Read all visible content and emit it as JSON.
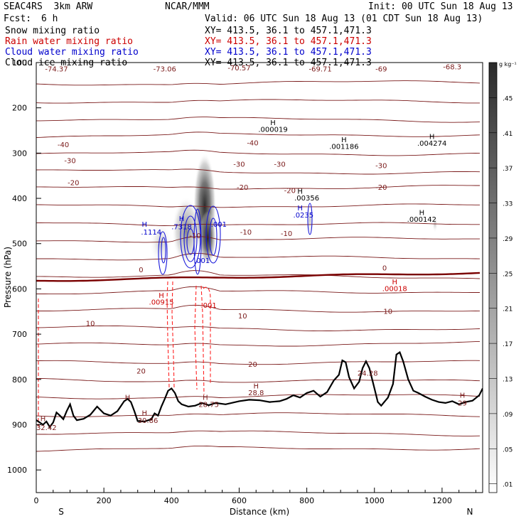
{
  "header": {
    "model": "SEAC4RS  3km ARW",
    "org": "NCAR/MMM",
    "init": "Init: 00 UTC Sun 18 Aug 13",
    "fcst_label": "Fcst:",
    "fcst_value": "6 h",
    "valid": "Valid: 06 UTC Sun 18 Aug 13 (01 CDT Sun 18 Aug 13)",
    "fields": [
      {
        "name": "Snow mixing ratio",
        "xy": "XY= 413.5, 36.1 to 457.1,471.3",
        "color": "#000000"
      },
      {
        "name": "Rain water mixing ratio",
        "xy": "XY= 413.5, 36.1 to 457.1,471.3",
        "color": "#cc0000"
      },
      {
        "name": "Cloud water mixing ratio",
        "xy": "XY= 413.5, 36.1 to 457.1,471.3",
        "color": "#0000cc"
      },
      {
        "name": "Cloud ice mixing ratio",
        "xy": "XY= 413.5, 36.1 to 457.1,471.3",
        "color": "#000000"
      }
    ]
  },
  "chart_data": {
    "type": "heatmap",
    "xlabel": "Distance (km)",
    "ylabel": "Pressure (hPa)",
    "xlim": [
      0,
      1320
    ],
    "ylim": [
      1050,
      100
    ],
    "x_ticks": [
      0,
      200,
      400,
      600,
      800,
      1000,
      1200
    ],
    "y_ticks": [
      100,
      200,
      300,
      400,
      500,
      600,
      700,
      800,
      900,
      1000
    ],
    "y_tick_labels": [
      "100",
      "200",
      "300",
      "400",
      "500",
      "600",
      "700",
      "800",
      "900",
      "1000"
    ],
    "x_end_labels": {
      "left": "S",
      "right": "N"
    },
    "colorbar": {
      "unit": "g kg⁻¹",
      "levels": [
        0.01,
        0.05,
        0.09,
        0.13,
        0.17,
        0.21,
        0.25,
        0.29,
        0.33,
        0.37,
        0.41,
        0.45
      ],
      "labels": [
        ".01",
        ".05",
        ".09",
        ".13",
        ".17",
        ".21",
        ".25",
        ".29",
        ".33",
        ".37",
        ".41",
        ".45"
      ]
    },
    "temperature_contours": [
      {
        "value": -40,
        "label": "-40",
        "km": 80,
        "p": 287
      },
      {
        "value": -40,
        "label": "-40",
        "km": 640,
        "p": 283
      },
      {
        "value": -30,
        "label": "-30",
        "km": 100,
        "p": 322
      },
      {
        "value": -30,
        "label": "-30",
        "km": 600,
        "p": 330
      },
      {
        "value": -30,
        "label": "-30",
        "km": 720,
        "p": 330
      },
      {
        "value": -30,
        "label": "-30",
        "km": 1020,
        "p": 333
      },
      {
        "value": -20,
        "label": "-20",
        "km": 110,
        "p": 371
      },
      {
        "value": -20,
        "label": "-20",
        "km": 610,
        "p": 381
      },
      {
        "value": -20,
        "label": "-20",
        "km": 750,
        "p": 388
      },
      {
        "value": -20,
        "label": "-20",
        "km": 1020,
        "p": 381
      },
      {
        "value": -10,
        "label": "-10",
        "km": 470,
        "p": 488
      },
      {
        "value": -10,
        "label": "-10",
        "km": 620,
        "p": 480
      },
      {
        "value": -10,
        "label": "-10",
        "km": 740,
        "p": 483
      },
      {
        "value": 0,
        "label": "0",
        "km": 310,
        "p": 563
      },
      {
        "value": 0,
        "label": "0",
        "km": 1030,
        "p": 559
      },
      {
        "value": 10,
        "label": "10",
        "km": 160,
        "p": 682
      },
      {
        "value": 10,
        "label": "10",
        "km": 610,
        "p": 665
      },
      {
        "value": 10,
        "label": "10",
        "km": 1040,
        "p": 655
      },
      {
        "value": 20,
        "label": "20",
        "km": 310,
        "p": 787
      },
      {
        "value": 20,
        "label": "20",
        "km": 640,
        "p": 772
      }
    ],
    "cold_max_labels": [
      {
        "label": "-74.37",
        "km": 60,
        "p": 120
      },
      {
        "label": "-73.06",
        "km": 380,
        "p": 120
      },
      {
        "label": "-70.57",
        "km": 600,
        "p": 117
      },
      {
        "label": "-69.71",
        "km": 840,
        "p": 120
      },
      {
        "label": "-69",
        "km": 1020,
        "p": 120
      },
      {
        "label": "-68.3",
        "km": 1230,
        "p": 115
      }
    ],
    "snow_max_labels": [
      {
        "label": "H",
        "km": 700,
        "p": 238
      },
      {
        "label": ".000019",
        "km": 700,
        "p": 253
      },
      {
        "label": "H",
        "km": 910,
        "p": 276
      },
      {
        "label": ".001186",
        "km": 910,
        "p": 291
      },
      {
        "label": "H",
        "km": 1170,
        "p": 269
      },
      {
        "label": ".004274",
        "km": 1170,
        "p": 284
      },
      {
        "label": "H",
        "km": 780,
        "p": 390
      },
      {
        "label": ".00356",
        "km": 800,
        "p": 405
      },
      {
        "label": "H",
        "km": 1140,
        "p": 437
      },
      {
        "label": ".000142",
        "km": 1140,
        "p": 452
      }
    ],
    "rain_max_labels": [
      {
        "label": "H",
        "km": 1060,
        "p": 590
      },
      {
        "label": ".00018",
        "km": 1060,
        "p": 605
      },
      {
        "label": "H",
        "km": 370,
        "p": 620
      },
      {
        "label": ".00915",
        "km": 370,
        "p": 635
      },
      {
        "label": ".001",
        "km": 510,
        "p": 642
      }
    ],
    "cloud_water_labels": [
      {
        "label": "H",
        "km": 320,
        "p": 463
      },
      {
        "label": ".1114",
        "km": 340,
        "p": 480
      },
      {
        "label": "H",
        "km": 430,
        "p": 450
      },
      {
        "label": ".7318",
        "km": 430,
        "p": 468
      },
      {
        "label": ".001",
        "km": 540,
        "p": 463
      },
      {
        "label": ".001",
        "km": 490,
        "p": 543
      },
      {
        "label": "H",
        "km": 780,
        "p": 427
      },
      {
        "label": ".0235",
        "km": 790,
        "p": 442
      }
    ],
    "surface_max_labels": [
      {
        "label": "H",
        "km": 20,
        "p": 892
      },
      {
        "label": "32.42",
        "km": 30,
        "p": 912
      },
      {
        "label": "H",
        "km": 270,
        "p": 845
      },
      {
        "label": "H",
        "km": 320,
        "p": 880
      },
      {
        "label": "30.86",
        "km": 330,
        "p": 896
      },
      {
        "label": "H",
        "km": 500,
        "p": 845
      },
      {
        "label": "28.75",
        "km": 510,
        "p": 861
      },
      {
        "label": "H",
        "km": 650,
        "p": 820
      },
      {
        "label": "28.8",
        "km": 650,
        "p": 835
      },
      {
        "label": "24.28",
        "km": 980,
        "p": 792
      },
      {
        "label": "H",
        "km": 1260,
        "p": 840
      },
      {
        "label": "29",
        "km": 1260,
        "p": 858
      }
    ],
    "terrain": [
      [
        0,
        890
      ],
      [
        10,
        895
      ],
      [
        20,
        900
      ],
      [
        30,
        893
      ],
      [
        40,
        905
      ],
      [
        50,
        895
      ],
      [
        60,
        873
      ],
      [
        70,
        880
      ],
      [
        80,
        888
      ],
      [
        90,
        870
      ],
      [
        100,
        855
      ],
      [
        110,
        880
      ],
      [
        120,
        890
      ],
      [
        140,
        887
      ],
      [
        160,
        878
      ],
      [
        180,
        860
      ],
      [
        200,
        875
      ],
      [
        220,
        880
      ],
      [
        240,
        870
      ],
      [
        260,
        848
      ],
      [
        270,
        843
      ],
      [
        280,
        850
      ],
      [
        290,
        870
      ],
      [
        300,
        892
      ],
      [
        320,
        893
      ],
      [
        340,
        888
      ],
      [
        350,
        875
      ],
      [
        360,
        880
      ],
      [
        370,
        860
      ],
      [
        380,
        843
      ],
      [
        390,
        825
      ],
      [
        400,
        820
      ],
      [
        410,
        830
      ],
      [
        420,
        848
      ],
      [
        430,
        855
      ],
      [
        450,
        860
      ],
      [
        470,
        858
      ],
      [
        490,
        852
      ],
      [
        510,
        857
      ],
      [
        530,
        852
      ],
      [
        560,
        855
      ],
      [
        600,
        848
      ],
      [
        630,
        845
      ],
      [
        660,
        846
      ],
      [
        690,
        850
      ],
      [
        720,
        848
      ],
      [
        740,
        843
      ],
      [
        760,
        835
      ],
      [
        780,
        840
      ],
      [
        800,
        830
      ],
      [
        820,
        825
      ],
      [
        840,
        838
      ],
      [
        860,
        828
      ],
      [
        880,
        802
      ],
      [
        895,
        790
      ],
      [
        905,
        758
      ],
      [
        915,
        762
      ],
      [
        925,
        795
      ],
      [
        940,
        820
      ],
      [
        955,
        805
      ],
      [
        965,
        775
      ],
      [
        975,
        760
      ],
      [
        985,
        775
      ],
      [
        1000,
        820
      ],
      [
        1010,
        850
      ],
      [
        1020,
        858
      ],
      [
        1040,
        840
      ],
      [
        1055,
        810
      ],
      [
        1065,
        745
      ],
      [
        1075,
        740
      ],
      [
        1085,
        760
      ],
      [
        1100,
        800
      ],
      [
        1115,
        825
      ],
      [
        1130,
        830
      ],
      [
        1150,
        838
      ],
      [
        1170,
        845
      ],
      [
        1190,
        850
      ],
      [
        1210,
        852
      ],
      [
        1230,
        848
      ],
      [
        1250,
        855
      ],
      [
        1270,
        850
      ],
      [
        1290,
        847
      ],
      [
        1310,
        835
      ],
      [
        1320,
        820
      ]
    ]
  }
}
